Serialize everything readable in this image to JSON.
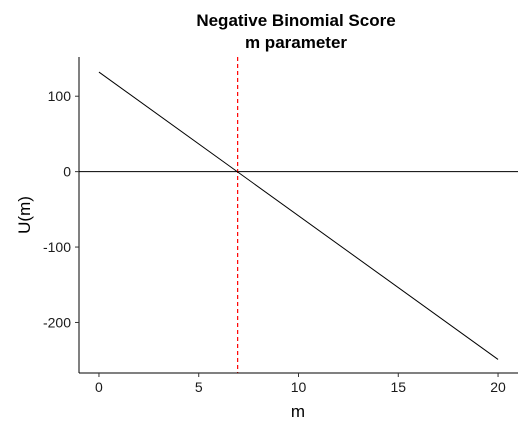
{
  "chart_data": {
    "type": "line",
    "title": "Negative Binomial Score",
    "subtitle": "m parameter",
    "xlabel": "m",
    "ylabel": "U(m)",
    "xlim": [
      -1,
      21
    ],
    "ylim": [
      -267,
      152
    ],
    "x_ticks": [
      0,
      5,
      10,
      15,
      20
    ],
    "y_ticks": [
      100,
      0,
      -100,
      -200
    ],
    "series": [
      {
        "x": [
          0,
          20
        ],
        "values": [
          132,
          -249
        ],
        "color": "#000000"
      }
    ],
    "reference_lines": {
      "horizontal": {
        "y": 0,
        "color": "#000000",
        "style": "solid"
      },
      "vertical": {
        "x": 6.95,
        "color": "#ff0000",
        "style": "dashed"
      }
    },
    "grid": false,
    "legend": "none"
  }
}
